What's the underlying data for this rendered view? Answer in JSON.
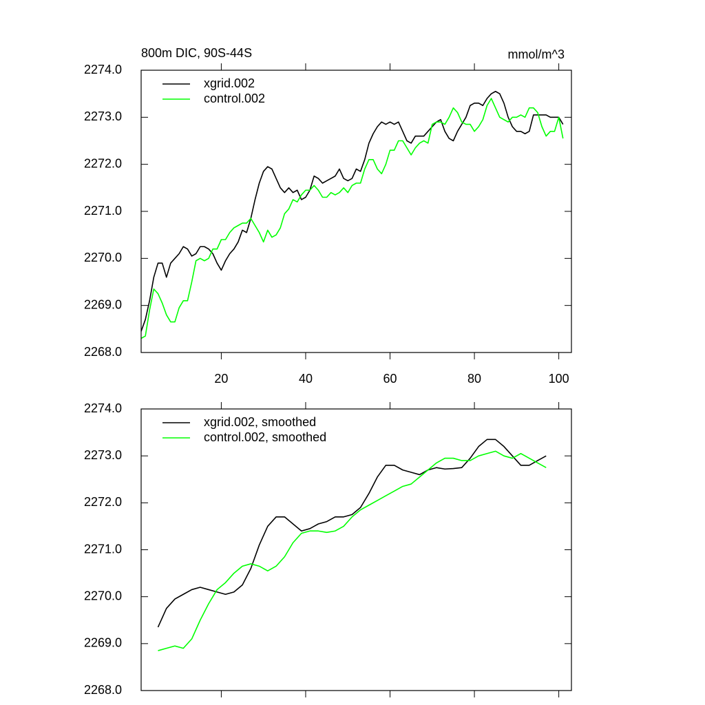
{
  "chart_data": [
    {
      "type": "line",
      "title": "800m DIC, 90S-44S",
      "units": "mmol/m^3",
      "x": [
        1,
        2,
        3,
        4,
        5,
        6,
        7,
        8,
        9,
        10,
        11,
        12,
        13,
        14,
        15,
        16,
        17,
        18,
        19,
        20,
        21,
        22,
        23,
        24,
        25,
        26,
        27,
        28,
        29,
        30,
        31,
        32,
        33,
        34,
        35,
        36,
        37,
        38,
        39,
        40,
        41,
        42,
        43,
        44,
        45,
        46,
        47,
        48,
        49,
        50,
        51,
        52,
        53,
        54,
        55,
        56,
        57,
        58,
        59,
        60,
        61,
        62,
        63,
        64,
        65,
        66,
        67,
        68,
        69,
        70,
        71,
        72,
        73,
        74,
        75,
        76,
        77,
        78,
        79,
        80,
        81,
        82,
        83,
        84,
        85,
        86,
        87,
        88,
        89,
        90,
        91,
        92,
        93,
        94,
        95,
        96,
        97,
        98,
        99,
        100,
        101
      ],
      "series": [
        {
          "name": "xgrid.002",
          "color": "#000000",
          "values": [
            2268.45,
            2268.7,
            2269.1,
            2269.6,
            2269.9,
            2269.9,
            2269.6,
            2269.9,
            2270.0,
            2270.1,
            2270.25,
            2270.2,
            2270.05,
            2270.1,
            2270.25,
            2270.25,
            2270.2,
            2270.1,
            2269.9,
            2269.75,
            2269.95,
            2270.1,
            2270.2,
            2270.35,
            2270.6,
            2270.55,
            2270.85,
            2271.25,
            2271.6,
            2271.85,
            2271.95,
            2271.9,
            2271.7,
            2271.5,
            2271.4,
            2271.5,
            2271.4,
            2271.45,
            2271.25,
            2271.3,
            2271.45,
            2271.75,
            2271.7,
            2271.6,
            2271.65,
            2271.7,
            2271.75,
            2271.9,
            2271.7,
            2271.65,
            2271.7,
            2271.9,
            2271.85,
            2272.1,
            2272.45,
            2272.65,
            2272.8,
            2272.9,
            2272.85,
            2272.9,
            2272.85,
            2272.9,
            2272.7,
            2272.5,
            2272.45,
            2272.6,
            2272.6,
            2272.6,
            2272.7,
            2272.8,
            2272.9,
            2272.95,
            2272.7,
            2272.55,
            2272.5,
            2272.7,
            2272.85,
            2273.0,
            2273.25,
            2273.3,
            2273.3,
            2273.25,
            2273.4,
            2273.5,
            2273.55,
            2273.5,
            2273.3,
            2273.0,
            2272.8,
            2272.7,
            2272.7,
            2272.65,
            2272.7,
            2273.05,
            2273.05,
            2273.05,
            2273.05,
            2273.0,
            2273.0,
            2273.0,
            2272.85
          ]
        },
        {
          "name": "control.002",
          "color": "#00ff00",
          "values": [
            2268.3,
            2268.35,
            2268.9,
            2269.35,
            2269.25,
            2269.05,
            2268.8,
            2268.65,
            2268.65,
            2268.95,
            2269.1,
            2269.1,
            2269.5,
            2269.95,
            2270.0,
            2269.95,
            2270.0,
            2270.2,
            2270.2,
            2270.4,
            2270.4,
            2270.55,
            2270.65,
            2270.7,
            2270.75,
            2270.75,
            2270.85,
            2270.7,
            2270.55,
            2270.35,
            2270.6,
            2270.45,
            2270.5,
            2270.65,
            2270.95,
            2271.05,
            2271.25,
            2271.2,
            2271.35,
            2271.45,
            2271.45,
            2271.55,
            2271.45,
            2271.3,
            2271.3,
            2271.4,
            2271.35,
            2271.4,
            2271.5,
            2271.4,
            2271.55,
            2271.6,
            2271.6,
            2271.9,
            2272.1,
            2272.1,
            2271.9,
            2271.8,
            2272.0,
            2272.3,
            2272.3,
            2272.5,
            2272.5,
            2272.35,
            2272.2,
            2272.35,
            2272.45,
            2272.5,
            2272.45,
            2272.85,
            2272.9,
            2272.9,
            2272.85,
            2273.0,
            2273.2,
            2273.1,
            2272.9,
            2272.85,
            2272.85,
            2272.7,
            2272.8,
            2272.95,
            2273.25,
            2273.4,
            2273.2,
            2273.0,
            2272.95,
            2272.9,
            2273.0,
            2273.0,
            2273.05,
            2273.0,
            2273.2,
            2273.2,
            2273.1,
            2272.8,
            2272.6,
            2272.7,
            2272.7,
            2273.0,
            2272.55
          ]
        }
      ],
      "xlim": [
        1,
        103
      ],
      "xticks": [
        20,
        40,
        60,
        80,
        100
      ],
      "xtick_labels": true,
      "ylim": [
        2268,
        2274
      ],
      "yticks": [
        {
          "value": 2268,
          "label": "2268.0"
        },
        {
          "value": 2269,
          "label": "2269.0"
        },
        {
          "value": 2270,
          "label": "2270.0"
        },
        {
          "value": 2271,
          "label": "2271.0"
        },
        {
          "value": 2272,
          "label": "2272.0"
        },
        {
          "value": 2273,
          "label": "2273.0"
        },
        {
          "value": 2274,
          "label": "2274.0"
        }
      ],
      "legend": "upper left",
      "grid": false
    },
    {
      "type": "line",
      "x": [
        5,
        7,
        9,
        11,
        13,
        15,
        17,
        19,
        21,
        23,
        25,
        27,
        29,
        31,
        33,
        35,
        37,
        39,
        41,
        43,
        45,
        47,
        49,
        51,
        53,
        55,
        57,
        59,
        61,
        63,
        65,
        67,
        69,
        71,
        73,
        75,
        77,
        79,
        81,
        83,
        85,
        87,
        89,
        91,
        93,
        95,
        97
      ],
      "series": [
        {
          "name": "xgrid.002, smoothed",
          "color": "#000000",
          "values": [
            2269.35,
            2269.75,
            2269.95,
            2270.05,
            2270.15,
            2270.2,
            2270.15,
            2270.1,
            2270.05,
            2270.1,
            2270.25,
            2270.6,
            2271.1,
            2271.5,
            2271.7,
            2271.7,
            2271.55,
            2271.4,
            2271.45,
            2271.55,
            2271.6,
            2271.7,
            2271.7,
            2271.75,
            2271.9,
            2272.2,
            2272.55,
            2272.8,
            2272.8,
            2272.7,
            2272.65,
            2272.6,
            2272.7,
            2272.75,
            2272.72,
            2272.73,
            2272.75,
            2272.95,
            2273.2,
            2273.35,
            2273.35,
            2273.2,
            2273.0,
            2272.8,
            2272.8,
            2272.9,
            2273.0
          ]
        },
        {
          "name": "control.002, smoothed",
          "color": "#00ff00",
          "values": [
            2268.85,
            2268.9,
            2268.95,
            2268.9,
            2269.1,
            2269.5,
            2269.85,
            2270.15,
            2270.3,
            2270.5,
            2270.65,
            2270.7,
            2270.65,
            2270.55,
            2270.65,
            2270.85,
            2271.15,
            2271.35,
            2271.4,
            2271.4,
            2271.37,
            2271.4,
            2271.5,
            2271.7,
            2271.85,
            2271.95,
            2272.05,
            2272.15,
            2272.25,
            2272.35,
            2272.4,
            2272.55,
            2272.7,
            2272.85,
            2272.95,
            2272.95,
            2272.9,
            2272.9,
            2273.0,
            2273.05,
            2273.1,
            2273.0,
            2272.95,
            2273.05,
            2272.95,
            2272.85,
            2272.75
          ]
        }
      ],
      "xlim": [
        1,
        103
      ],
      "xticks": [
        20,
        40,
        60,
        80,
        100
      ],
      "xtick_labels": false,
      "ylim": [
        2268,
        2274
      ],
      "yticks": [
        {
          "value": 2268,
          "label": "2268.0"
        },
        {
          "value": 2269,
          "label": "2269.0"
        },
        {
          "value": 2270,
          "label": "2270.0"
        },
        {
          "value": 2271,
          "label": "2271.0"
        },
        {
          "value": 2272,
          "label": "2272.0"
        },
        {
          "value": 2273,
          "label": "2273.0"
        },
        {
          "value": 2274,
          "label": "2274.0"
        }
      ],
      "legend": "upper left",
      "grid": false
    }
  ]
}
